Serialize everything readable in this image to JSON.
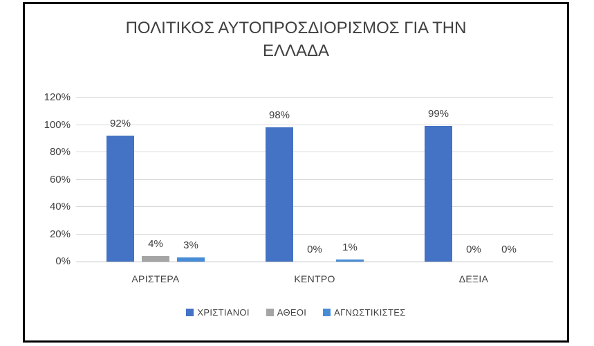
{
  "chart_data": {
    "type": "bar",
    "title": "ΠΟΛΙΤΙΚΟΣ ΑΥΤΟΠΡΟΣΔΙΟΡΙΣΜΟΣ ΓΙΑ ΤΗΝ ΕΛΛΑΔΑ",
    "title_lines": [
      "ΠΟΛΙΤΙΚΟΣ ΑΥΤΟΠΡΟΣΔΙΟΡΙΣΜΟΣ ΓΙΑ ΤΗΝ",
      "ΕΛΛΑΔΑ"
    ],
    "categories": [
      "ΑΡΙΣΤΕΡΑ",
      "ΚΕΝΤΡΟ",
      "ΔΕΞΙΑ"
    ],
    "series": [
      {
        "name": "ΧΡΙΣΤΙΑΝΟΙ",
        "color": "#4472C4",
        "values": [
          92,
          98,
          99
        ],
        "labels": [
          "92%",
          "98%",
          "99%"
        ]
      },
      {
        "name": "ΑΘΕΟΙ",
        "color": "#A5A5A5",
        "values": [
          4,
          0,
          0
        ],
        "labels": [
          "4%",
          "0%",
          "0%"
        ]
      },
      {
        "name": "ΑΓΝΩΣΤΙΚΙΣΤΕΣ",
        "color": "#468CD7",
        "values": [
          3,
          1,
          0
        ],
        "labels": [
          "3%",
          "1%",
          "0%"
        ]
      }
    ],
    "y_ticks": [
      "0%",
      "20%",
      "40%",
      "60%",
      "80%",
      "100%",
      "120%"
    ],
    "ylim": [
      0,
      120
    ],
    "y_step": 20,
    "grid": true,
    "legend_position": "bottom",
    "style": {
      "gridline_color": "#D9D9D9",
      "axis_line_color": "#BFBFBF",
      "text_color": "#404040",
      "frame_border_color": "#000000"
    }
  }
}
